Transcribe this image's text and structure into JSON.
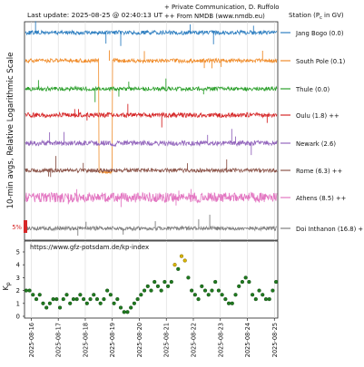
{
  "header": {
    "last_update": "Last update: 2025-08-25 @ 02:40:13 UT",
    "credit_1": "+ Private Communication, D. Ruffolo",
    "credit_2": "++ From NMDB (www.nmdb.eu)"
  },
  "colors": {
    "jang_bogo": "#2f7fc1",
    "south_pole": "#f08c2a",
    "thule": "#2ca02c",
    "oulu": "#d62728",
    "newark": "#9467bd",
    "rome": "#8c564b",
    "athens": "#e377c2",
    "doi_inthanon": "#7f7f7f",
    "kp_green": "#1f7a1f",
    "kp_yellow": "#d9b400",
    "scale_bar": "#d62728"
  },
  "chart_data": [
    {
      "type": "line",
      "ylabel": "10-min avgs, Relative Logarithmic Scale",
      "legend_title": "Station (P",
      "legend_title_sub": "c",
      "legend_title_end": " in GV)",
      "legend_placement": "right",
      "scale_bar_label": "5%",
      "series": [
        {
          "name": "Jang Bogo (0.0)",
          "color_key": "jang_bogo",
          "event_dips": []
        },
        {
          "name": "South Pole (0.1)",
          "color_key": "south_pole",
          "event_dips": [
            {
              "start": "2025-08-18 12:00",
              "end": "2025-08-19 00:00"
            }
          ]
        },
        {
          "name": "Thule (0.0)",
          "color_key": "thule",
          "event_dips": []
        },
        {
          "name": "Oulu (1.8) ++",
          "color_key": "oulu",
          "event_dips": []
        },
        {
          "name": "Newark (2.6)",
          "color_key": "newark",
          "event_dips": [
            {
              "start": "2025-08-18 22:00",
              "end": "2025-08-19 04:00"
            }
          ]
        },
        {
          "name": "Rome (6.3) ++",
          "color_key": "rome",
          "event_dips": []
        },
        {
          "name": "Athens (8.5) ++",
          "color_key": "athens",
          "event_dips": []
        },
        {
          "name": "Doi Inthanon (16.8) +",
          "color_key": "doi_inthanon",
          "event_dips": []
        }
      ]
    },
    {
      "type": "bar",
      "annotation": "https://www.gfz-potsdam.de/kp-index",
      "ylabel": "K",
      "ylabel_sub": "p",
      "ylim": [
        0,
        5
      ],
      "yticks": [
        "0",
        "1",
        "2",
        "3",
        "4",
        "5"
      ],
      "categories": [
        "2025-08-16",
        "2025-08-17",
        "2025-08-18",
        "2025-08-19",
        "2025-08-20",
        "2025-08-21",
        "2025-08-22",
        "2025-08-23",
        "2025-08-24",
        "2025-08-25"
      ],
      "x_start": "2025-08-15 18:00",
      "x_end": "2025-08-25 03:00",
      "storm_threshold": 4,
      "kp": [
        2,
        2,
        1.67,
        1.33,
        1.67,
        1,
        0.67,
        1,
        1.33,
        1.33,
        0.67,
        1.33,
        1.67,
        1,
        1.33,
        1.33,
        1.67,
        1.33,
        1,
        1.33,
        1.67,
        1.33,
        1,
        1.33,
        2,
        1.67,
        1,
        1.33,
        0.67,
        0.33,
        0.33,
        0.67,
        1,
        1.33,
        1.67,
        2,
        2.33,
        2,
        2.67,
        2.33,
        2,
        2.67,
        2.33,
        2.67,
        4,
        3.67,
        4.67,
        4.33,
        3,
        2,
        1.67,
        1.33,
        2.33,
        2,
        1.67,
        2,
        2.67,
        2,
        1.67,
        1.33,
        1,
        1,
        1.67,
        2.33,
        2.67,
        3,
        2.67,
        1.67,
        1.33,
        2,
        1.67,
        1.33,
        1.33,
        2,
        2.67,
        2.33,
        1.33,
        1.67,
        1,
        1.33,
        1.67,
        2,
        1.33,
        1,
        1.67,
        1.67,
        1.33,
        1,
        1,
        1.33,
        1.33,
        1.67,
        1.67,
        1.33,
        1.33,
        1.67
      ]
    }
  ]
}
